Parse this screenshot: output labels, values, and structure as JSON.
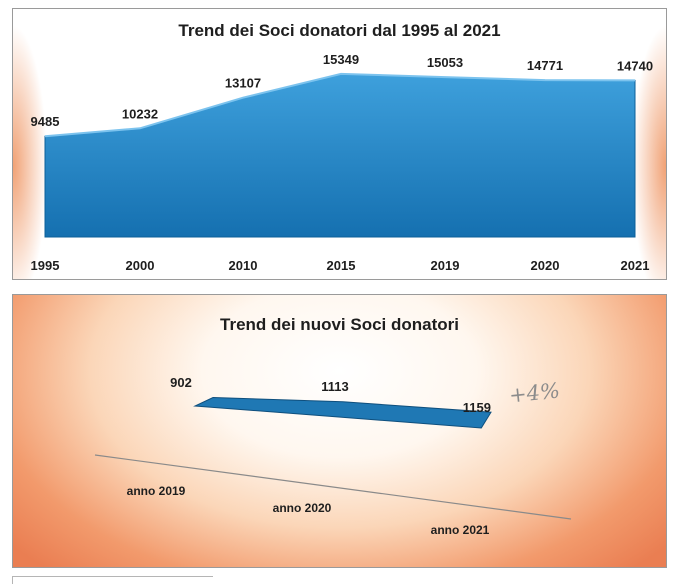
{
  "chart_data": [
    {
      "type": "area",
      "title": "Trend dei Soci donatori dal 1995  al 2021",
      "categories": [
        "1995",
        "2000",
        "2010",
        "2015",
        "2019",
        "2020",
        "2021"
      ],
      "values": [
        9485,
        10232,
        13107,
        15349,
        15053,
        14771,
        14740
      ],
      "data_labels": [
        "9485",
        "10232",
        "13107",
        "15349",
        "15053",
        "14771",
        "14740"
      ],
      "xlabel": "",
      "ylabel": "",
      "ylim": [
        0,
        16000
      ],
      "grid": false,
      "legend": "none",
      "colors": {
        "fill": "#1b7fc1",
        "fill_light": "#3ea0dc",
        "edge": "#0d5f98"
      }
    },
    {
      "type": "area",
      "title": "Trend dei nuovi Soci donatori",
      "categories": [
        "anno 2019",
        "anno 2020",
        "anno 2021"
      ],
      "values": [
        902,
        1113,
        1159
      ],
      "data_labels": [
        "902",
        "1113",
        "1159"
      ],
      "annotation": "+4%",
      "xlabel": "",
      "ylabel": "",
      "grid": false,
      "legend": "none",
      "colors": {
        "fill": "#1f78b4",
        "edge": "#0f4f7d",
        "axis": "#8a8a8a"
      }
    }
  ]
}
